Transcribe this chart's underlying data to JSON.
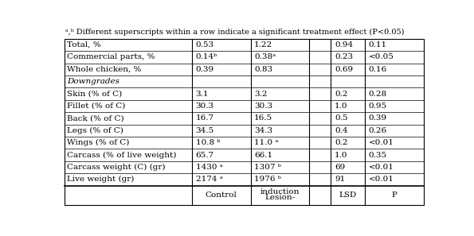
{
  "rows": [
    {
      "label": "Live weight (gr)",
      "control": "2174 ᵃ",
      "lesion": "1976 ᵇ",
      "lsd": "91",
      "p": "<0.01",
      "italic": false
    },
    {
      "label": "Carcass weight (C) (gr)",
      "control": "1430 ᵃ",
      "lesion": "1307 ᵇ",
      "lsd": "69",
      "p": "<0.01",
      "italic": false
    },
    {
      "label": "Carcass (% of live weight)",
      "control": "65.7",
      "lesion": "66.1",
      "lsd": "1.0",
      "p": "0.35",
      "italic": false
    },
    {
      "label": "Wings (% of C)",
      "control": "10.8 ᵇ",
      "lesion": "11.0 ᵃ",
      "lsd": "0.2",
      "p": "<0.01",
      "italic": false
    },
    {
      "label": "Legs (% of C)",
      "control": "34.5",
      "lesion": "34.3",
      "lsd": "0.4",
      "p": "0.26",
      "italic": false
    },
    {
      "label": "Back (% of C)",
      "control": "16.7",
      "lesion": "16.5",
      "lsd": "0.5",
      "p": "0.39",
      "italic": false
    },
    {
      "label": "Fillet (% of C)",
      "control": "30.3",
      "lesion": "30.3",
      "lsd": "1.0",
      "p": "0.95",
      "italic": false
    },
    {
      "label": "Skin (% of C)",
      "control": "3.1",
      "lesion": "3.2",
      "lsd": "0.2",
      "p": "0.28",
      "italic": false
    },
    {
      "label": "Downgrades",
      "control": "",
      "lesion": "",
      "lsd": "",
      "p": "",
      "italic": true
    },
    {
      "label": "Whole chicken, %",
      "control": "0.39",
      "lesion": "0.83",
      "lsd": "0.69",
      "p": "0.16",
      "italic": false
    },
    {
      "label": "Commercial parts, %",
      "control": "0.14ᵇ",
      "lesion": "0.38ᵃ",
      "lsd": "0.23",
      "p": "<0.05",
      "italic": false
    },
    {
      "label": "Total, %",
      "control": "0.53",
      "lesion": "1.22",
      "lsd": "0.94",
      "p": "0.11",
      "italic": false
    }
  ],
  "footnote": "ᵃ,ᵇ Different superscripts within a row indicate a significant treatment effect (P<0.05)",
  "header_control": "Control",
  "header_lesion": "Lesion-\ninduction",
  "header_lsd": "LSD",
  "header_p": "P",
  "font_size": 7.5,
  "bg_color": "#ffffff",
  "border_color": "#000000",
  "text_color": "#000000"
}
